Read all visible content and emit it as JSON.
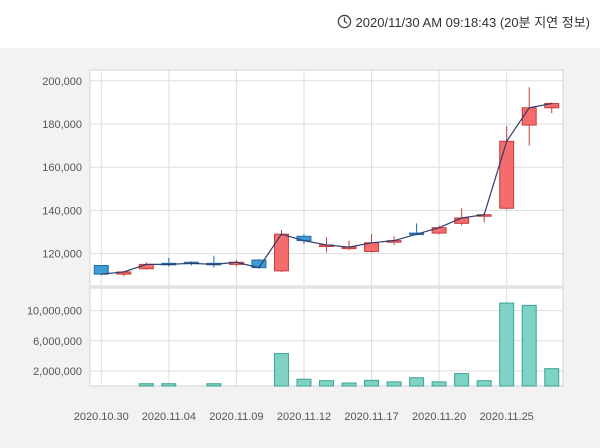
{
  "header": {
    "timestamp": "2020/11/30 AM 09:18:43 (20분 지연 정보)",
    "icon": "clock-icon"
  },
  "colors": {
    "up": "#f56c6c",
    "up_border": "#c83c3c",
    "down": "#3d9bd6",
    "down_border": "#1f6ea5",
    "volume": "#7ed3c6",
    "volume_border": "#3aa394",
    "line": "#2f3e6e",
    "grid": "#dddddd"
  },
  "chart_data": [
    {
      "type": "candlestick",
      "title": "",
      "ylim": [
        105000,
        205000
      ],
      "y_ticks": [
        120000,
        140000,
        160000,
        180000,
        200000
      ],
      "y_tick_labels": [
        "120,000",
        "140,000",
        "160,000",
        "180,000",
        "200,000"
      ],
      "x_tick_labels": [
        "2020.10.30",
        "2020.11.04",
        "2020.11.09",
        "2020.11.12",
        "2020.11.17",
        "2020.11.20",
        "2020.11.25"
      ],
      "x_tick_index": [
        0,
        3,
        6,
        9,
        12,
        15,
        18
      ],
      "grid": true,
      "candles": [
        {
          "open": 114500,
          "high": 114500,
          "low": 110000,
          "close": 110500
        },
        {
          "open": 110500,
          "high": 112000,
          "low": 109500,
          "close": 111500
        },
        {
          "open": 113000,
          "high": 116000,
          "low": 112500,
          "close": 115000
        },
        {
          "open": 115500,
          "high": 118000,
          "low": 114000,
          "close": 115000
        },
        {
          "open": 116000,
          "high": 116500,
          "low": 114500,
          "close": 115500
        },
        {
          "open": 115500,
          "high": 119000,
          "low": 113500,
          "close": 115000
        },
        {
          "open": 115000,
          "high": 117000,
          "low": 114000,
          "close": 116000
        },
        {
          "open": 117000,
          "high": 117500,
          "low": 113000,
          "close": 113500
        },
        {
          "open": 112000,
          "high": 131000,
          "low": 111500,
          "close": 129000
        },
        {
          "open": 128000,
          "high": 129000,
          "low": 124500,
          "close": 126000
        },
        {
          "open": 124000,
          "high": 127500,
          "low": 120500,
          "close": 124000
        },
        {
          "open": 123000,
          "high": 126000,
          "low": 121500,
          "close": 123000
        },
        {
          "open": 121000,
          "high": 129000,
          "low": 120500,
          "close": 125000
        },
        {
          "open": 125500,
          "high": 128000,
          "low": 124000,
          "close": 126000
        },
        {
          "open": 129500,
          "high": 134000,
          "low": 128500,
          "close": 129000
        },
        {
          "open": 129500,
          "high": 133000,
          "low": 129000,
          "close": 132000
        },
        {
          "open": 134000,
          "high": 141000,
          "low": 133000,
          "close": 136500
        },
        {
          "open": 137500,
          "high": 139000,
          "low": 134500,
          "close": 138000
        },
        {
          "open": 141000,
          "high": 179000,
          "low": 140500,
          "close": 172000
        },
        {
          "open": 179500,
          "high": 197000,
          "low": 170000,
          "close": 187500
        },
        {
          "open": 187500,
          "high": 190000,
          "low": 185000,
          "close": 189500
        }
      ],
      "line_values": [
        110500,
        111500,
        115000,
        115000,
        115500,
        115000,
        116000,
        113500,
        129000,
        126000,
        124000,
        123000,
        125000,
        126000,
        129000,
        132000,
        136500,
        138000,
        172000,
        187500,
        189500
      ]
    },
    {
      "type": "bar",
      "title": "",
      "ylim": [
        0,
        13000000
      ],
      "y_ticks": [
        2000000,
        6000000,
        10000000
      ],
      "y_tick_labels": [
        "2,000,000",
        "6,000,000",
        "10,000,000"
      ],
      "grid": true,
      "values": [
        0,
        0,
        300000,
        300000,
        0,
        300000,
        0,
        0,
        4300000,
        900000,
        700000,
        400000,
        750000,
        550000,
        1100000,
        550000,
        1650000,
        700000,
        11000000,
        10700000,
        2300000
      ]
    }
  ]
}
